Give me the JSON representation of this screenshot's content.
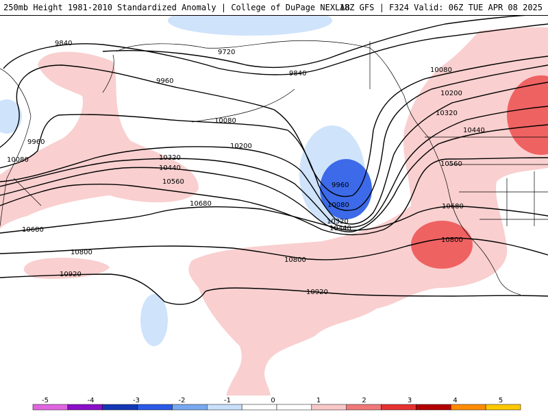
{
  "title": {
    "left": "250mb Height 1981-2010 Standardized Anomaly | College of DuPage NEXLAB",
    "right": "18Z GFS | F324 Valid: 06Z TUE APR 08 2025"
  },
  "contour_labels": [
    "9840",
    "9720",
    "9840",
    "9960",
    "10080",
    "9960",
    "10080",
    "10200",
    "10320",
    "10440",
    "10560",
    "10680",
    "10680",
    "10800",
    "10920",
    "9960",
    "10080",
    "10320",
    "10440",
    "10800",
    "10920",
    "10080",
    "10200",
    "10320",
    "10440",
    "10560",
    "10680",
    "10800"
  ],
  "legend": {
    "ticks": [
      "-5",
      "-4",
      "-3",
      "-2",
      "-1",
      "0",
      "1",
      "2",
      "3",
      "4",
      "5"
    ],
    "colors": [
      "#e066e0",
      "#8b10c8",
      "#1438b4",
      "#2a5ae6",
      "#78a8f0",
      "#c8e0fa",
      "#ffffff",
      "#ffffff",
      "#f8c8c8",
      "#f07878",
      "#e63232",
      "#b40000",
      "#ff8c00",
      "#ffc800"
    ]
  },
  "colors": {
    "neg_weak": "#cfe3fb",
    "neg_strong": "#3c6ae8",
    "pos_weak": "#f9cfcf",
    "pos_strong": "#ef6262"
  }
}
